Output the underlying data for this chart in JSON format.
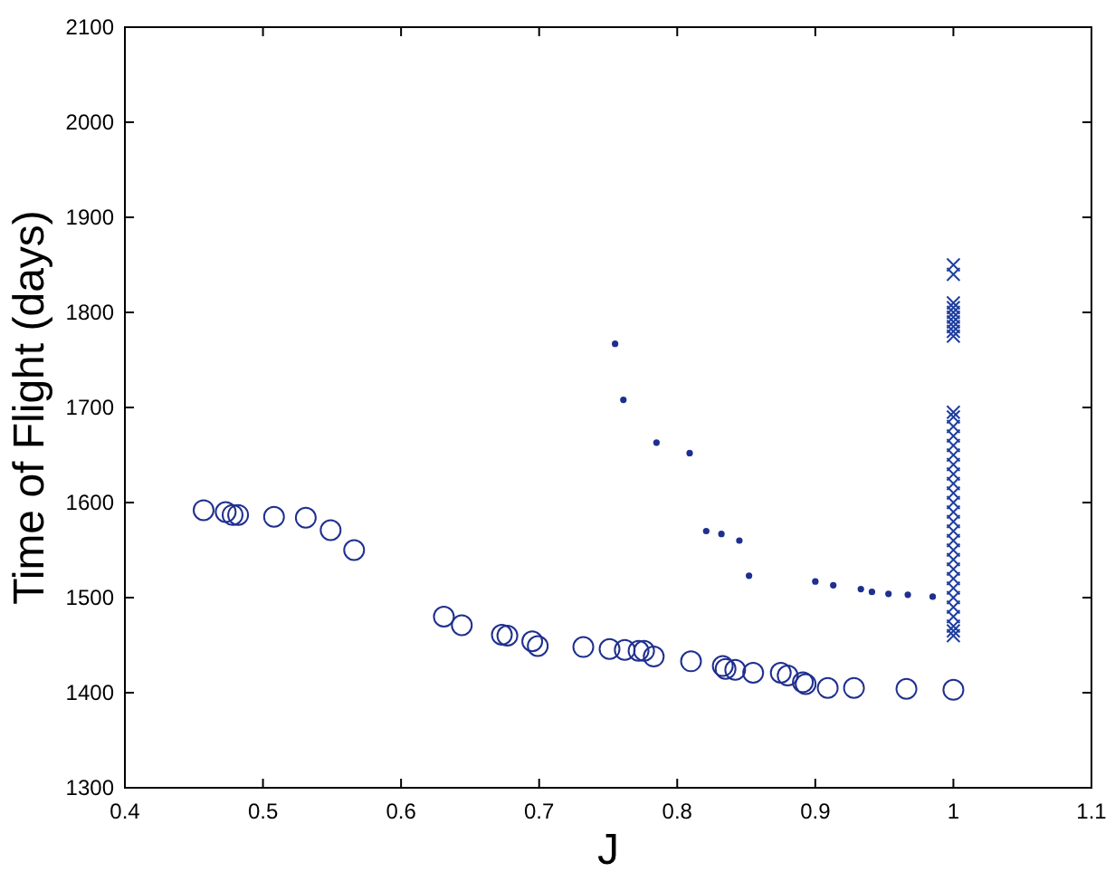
{
  "chart_data": {
    "type": "scatter",
    "xlabel": "J",
    "ylabel": "Time of Flight (days)",
    "xlim": [
      0.4,
      1.1
    ],
    "xticks": [
      0.4,
      0.5,
      0.6,
      0.7,
      0.8,
      0.9,
      1,
      1.1
    ],
    "ylim": [
      1300,
      2100
    ],
    "yticks": [
      1300,
      1400,
      1500,
      1600,
      1700,
      1800,
      1900,
      2000,
      2100
    ],
    "grid": false,
    "series": [
      {
        "color": "#1f2f8f",
        "marker": "circle",
        "x": [
          0.457,
          0.473,
          0.478,
          0.482,
          0.508,
          0.531,
          0.549,
          0.566,
          0.631,
          0.644,
          0.673,
          0.677,
          0.695,
          0.699,
          0.732,
          0.751,
          0.762,
          0.772,
          0.776,
          0.783,
          0.81,
          0.833,
          0.835,
          0.842,
          0.855,
          0.875,
          0.88,
          0.891,
          0.893,
          0.909,
          0.928,
          0.966,
          1.0
        ],
        "values": [
          1592,
          1590,
          1587,
          1587,
          1585,
          1584,
          1571,
          1550,
          1480,
          1471,
          1461,
          1460,
          1454,
          1449,
          1448,
          1446,
          1445,
          1444,
          1444,
          1438,
          1433,
          1428,
          1425,
          1424,
          1421,
          1421,
          1418,
          1411,
          1409,
          1405,
          1405,
          1404,
          1403
        ]
      },
      {
        "color": "#1f2f8f",
        "marker": "dot",
        "x": [
          0.755,
          0.761,
          0.785,
          0.809,
          0.821,
          0.832,
          0.845,
          0.852,
          0.9,
          0.913,
          0.933,
          0.941,
          0.953,
          0.967,
          0.985
        ],
        "values": [
          1767,
          1708,
          1663,
          1652,
          1570,
          1567,
          1560,
          1523,
          1517,
          1513,
          1509,
          1506,
          1504,
          1503,
          1501
        ]
      },
      {
        "color": "#1f3fa0",
        "marker": "cross",
        "x": [
          1,
          1,
          1,
          1,
          1,
          1,
          1,
          1,
          1,
          1,
          1,
          1,
          1,
          1,
          1,
          1,
          1,
          1,
          1,
          1,
          1,
          1,
          1,
          1,
          1,
          1,
          1,
          1,
          1,
          1,
          1,
          1,
          1,
          1,
          1,
          1
        ],
        "values": [
          1850,
          1840,
          1810,
          1805,
          1800,
          1795,
          1790,
          1785,
          1780,
          1775,
          1695,
          1690,
          1680,
          1670,
          1660,
          1650,
          1640,
          1630,
          1620,
          1610,
          1600,
          1590,
          1580,
          1570,
          1560,
          1550,
          1540,
          1530,
          1520,
          1510,
          1500,
          1490,
          1480,
          1470,
          1465,
          1460
        ]
      }
    ]
  }
}
